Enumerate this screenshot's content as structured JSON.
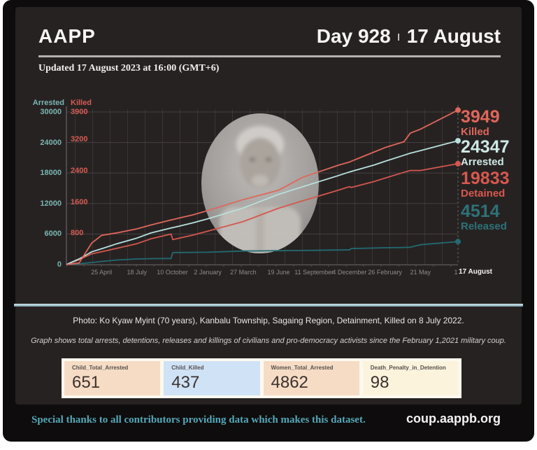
{
  "header": {
    "logo": "AAPP",
    "day_counter": "Day 928",
    "separator": "ı",
    "date": "17 August"
  },
  "updated": "Updated 17 August 2023 at 16:00 (GMT+6)",
  "chart_data": {
    "type": "line",
    "description": "Cumulative arrests, detentions, releases and killings since the 1 February 2021 Myanmar military coup",
    "x_axis": {
      "unit": "days since 1 February 2021",
      "range_days": [
        0,
        928
      ],
      "ticks": [
        {
          "day": 83,
          "label": "25 April"
        },
        {
          "day": 167,
          "label": "18 July"
        },
        {
          "day": 251,
          "label": "10 October"
        },
        {
          "day": 335,
          "label": "2 January"
        },
        {
          "day": 419,
          "label": "27 March"
        },
        {
          "day": 503,
          "label": "19 June"
        },
        {
          "day": 587,
          "label": "11 September"
        },
        {
          "day": 671,
          "label": "4 December"
        },
        {
          "day": 755,
          "label": "26 February"
        },
        {
          "day": 839,
          "label": "21 May"
        },
        {
          "day": 923,
          "label": "1"
        }
      ],
      "current": {
        "day": 928,
        "label": "17 August"
      }
    },
    "y_axis_left_primary": {
      "label": "Arrested",
      "color": "#79b7b3",
      "max": 30000,
      "ticks": [
        30000,
        24000,
        18000,
        12000,
        6000,
        0
      ]
    },
    "y_axis_left_secondary": {
      "label": "Killed",
      "color": "#d55c52",
      "max": 3900,
      "ticks": [
        3900,
        3200,
        2400,
        1600,
        800
      ]
    },
    "grid": true,
    "x_days": [
      0,
      30,
      60,
      83,
      120,
      167,
      200,
      248,
      252,
      300,
      335,
      419,
      503,
      560,
      587,
      645,
      671,
      675,
      730,
      755,
      800,
      815,
      839,
      928
    ],
    "series": [
      {
        "name": "Detained",
        "axis": "arrested",
        "color": "#d4574e",
        "final": 19833,
        "values": [
          0,
          950,
          2100,
          2500,
          3200,
          4100,
          5050,
          6000,
          4900,
          5800,
          6580,
          8450,
          11080,
          12530,
          13200,
          14640,
          15320,
          15150,
          16350,
          17000,
          18140,
          18500,
          18500,
          19833
        ]
      },
      {
        "name": "Released",
        "axis": "arrested",
        "color": "#216b72",
        "final": 4514,
        "values": [
          0,
          150,
          400,
          600,
          900,
          1100,
          1150,
          1200,
          2350,
          2400,
          2420,
          2650,
          2720,
          2770,
          2800,
          2860,
          2880,
          3150,
          3250,
          3300,
          3360,
          3400,
          3900,
          4514
        ]
      },
      {
        "name": "Arrested",
        "axis": "arrested",
        "color": "#b7e1de",
        "final": 24347,
        "values": [
          0,
          1100,
          2500,
          3100,
          4100,
          5200,
          6200,
          7200,
          7250,
          8200,
          9000,
          11100,
          13800,
          15300,
          16000,
          17500,
          18200,
          18300,
          19600,
          20300,
          21500,
          21900,
          22400,
          24347
        ]
      },
      {
        "name": "Killed",
        "axis": "killed",
        "color": "#df675b",
        "final": 3949,
        "values": [
          0,
          40,
          550,
          745,
          810,
          912,
          1010,
          1140,
          1150,
          1270,
          1380,
          1660,
          1900,
          2230,
          2330,
          2540,
          2620,
          2640,
          2880,
          2990,
          3140,
          3360,
          3460,
          3949
        ]
      }
    ]
  },
  "stats_panel": [
    {
      "value": "3949",
      "label": "Killed",
      "color": "#df675b"
    },
    {
      "value": "24347",
      "label": "Arrested",
      "color": "#cde9e6"
    },
    {
      "value": "19833",
      "label": "Detained",
      "color": "#d8584e"
    },
    {
      "value": "4514",
      "label": "Released",
      "color": "#2d7278"
    }
  ],
  "photo_caption": "Photo: Ko Kyaw Myint (70 years), Kanbalu Township, Sagaing Region, Detainment, Killed on 8 July 2022.",
  "graph_note": "Graph shows total arrests, detentions, releases and killings of civilians and pro-democracy activists since the February 1,2021 military coup.",
  "stat_boxes": [
    {
      "label": "Child_Total_Arrested",
      "value": "651",
      "bg": "#f6dcc5"
    },
    {
      "label": "Child_Killed",
      "value": "437",
      "bg": "#cfe2f6"
    },
    {
      "label": "Women_Total_Arrested",
      "value": "4862",
      "bg": "#f6dcc5"
    },
    {
      "label": "Death_Penalty_in_Detention",
      "value": "98",
      "bg": "#fbf3dc"
    }
  ],
  "footer": {
    "thanks": "Special thanks to all contributors providing data which makes this dataset.",
    "site": "coup.aappb.org"
  }
}
